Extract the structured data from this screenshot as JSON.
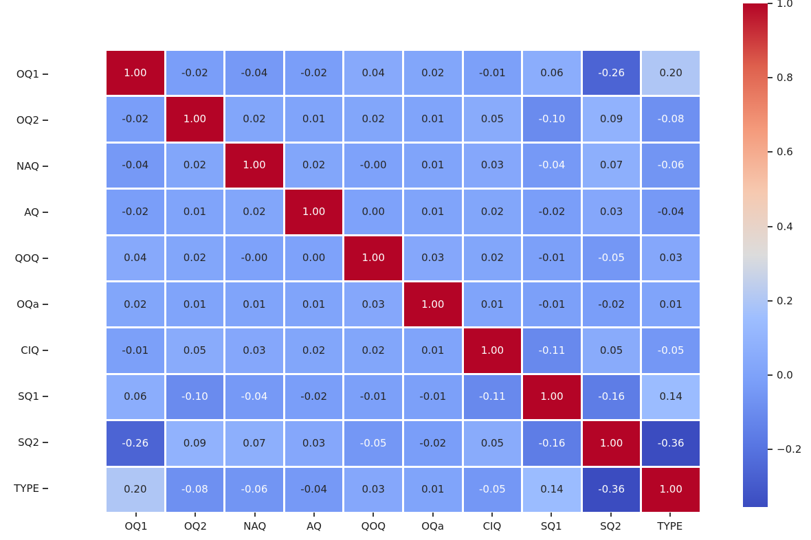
{
  "figure": {
    "background": "#ffffff"
  },
  "chart_data": {
    "type": "heatmap",
    "title": "",
    "xlabel": "",
    "ylabel": "",
    "legend_position": "colorbar-right",
    "grid": false,
    "categories": [
      "OQ1",
      "OQ2",
      "NAQ",
      "AQ",
      "QOQ",
      "OQa",
      "CIQ",
      "SQ1",
      "SQ2",
      "TYPE"
    ],
    "matrix_display": [
      [
        "1.00",
        "-0.02",
        "-0.04",
        "-0.02",
        "0.04",
        "0.02",
        "-0.01",
        "0.06",
        "-0.26",
        "0.20"
      ],
      [
        "-0.02",
        "1.00",
        "0.02",
        "0.01",
        "0.02",
        "0.01",
        "0.05",
        "-0.10",
        "0.09",
        "-0.08"
      ],
      [
        "-0.04",
        "0.02",
        "1.00",
        "0.02",
        "-0.00",
        "0.01",
        "0.03",
        "-0.04",
        "0.07",
        "-0.06"
      ],
      [
        "-0.02",
        "0.01",
        "0.02",
        "1.00",
        "0.00",
        "0.01",
        "0.02",
        "-0.02",
        "0.03",
        "-0.04"
      ],
      [
        "0.04",
        "0.02",
        "-0.00",
        "0.00",
        "1.00",
        "0.03",
        "0.02",
        "-0.01",
        "-0.05",
        "0.03"
      ],
      [
        "0.02",
        "0.01",
        "0.01",
        "0.01",
        "0.03",
        "1.00",
        "0.01",
        "-0.01",
        "-0.02",
        "0.01"
      ],
      [
        "-0.01",
        "0.05",
        "0.03",
        "0.02",
        "0.02",
        "0.01",
        "1.00",
        "-0.11",
        "0.05",
        "-0.05"
      ],
      [
        "0.06",
        "-0.10",
        "-0.04",
        "-0.02",
        "-0.01",
        "-0.01",
        "-0.11",
        "1.00",
        "-0.16",
        "0.14"
      ],
      [
        "-0.26",
        "0.09",
        "0.07",
        "0.03",
        "-0.05",
        "-0.02",
        "0.05",
        "-0.16",
        "1.00",
        "-0.36"
      ],
      [
        "0.20",
        "-0.08",
        "-0.06",
        "-0.04",
        "0.03",
        "0.01",
        "-0.05",
        "0.14",
        "-0.36",
        "1.00"
      ]
    ],
    "matrix_values": [
      [
        1.0,
        -0.02,
        -0.04,
        -0.02,
        0.04,
        0.02,
        -0.01,
        0.06,
        -0.26,
        0.2
      ],
      [
        -0.02,
        1.0,
        0.02,
        0.01,
        0.02,
        0.01,
        0.05,
        -0.1,
        0.09,
        -0.08
      ],
      [
        -0.04,
        0.02,
        1.0,
        0.02,
        0.0,
        0.01,
        0.03,
        -0.04,
        0.07,
        -0.06
      ],
      [
        -0.02,
        0.01,
        0.02,
        1.0,
        0.0,
        0.01,
        0.02,
        -0.02,
        0.03,
        -0.04
      ],
      [
        0.04,
        0.02,
        0.0,
        0.0,
        1.0,
        0.03,
        0.02,
        -0.01,
        -0.05,
        0.03
      ],
      [
        0.02,
        0.01,
        0.01,
        0.01,
        0.03,
        1.0,
        0.01,
        -0.01,
        -0.02,
        0.01
      ],
      [
        -0.01,
        0.05,
        0.03,
        0.02,
        0.02,
        0.01,
        1.0,
        -0.11,
        0.05,
        -0.05
      ],
      [
        0.06,
        -0.1,
        -0.04,
        -0.02,
        -0.01,
        -0.01,
        -0.11,
        1.0,
        -0.16,
        0.14
      ],
      [
        -0.26,
        0.09,
        0.07,
        0.03,
        -0.05,
        -0.02,
        0.05,
        -0.16,
        1.0,
        -0.36
      ],
      [
        0.2,
        -0.08,
        -0.06,
        -0.04,
        0.03,
        0.01,
        -0.05,
        0.14,
        -0.36,
        1.0
      ]
    ],
    "text_colors": [
      [
        "w",
        "k",
        "k",
        "k",
        "k",
        "k",
        "k",
        "k",
        "w",
        "k"
      ],
      [
        "k",
        "w",
        "k",
        "k",
        "k",
        "k",
        "k",
        "w",
        "k",
        "w"
      ],
      [
        "k",
        "k",
        "w",
        "k",
        "k",
        "k",
        "k",
        "w",
        "k",
        "w"
      ],
      [
        "k",
        "k",
        "k",
        "w",
        "k",
        "k",
        "k",
        "k",
        "k",
        "k"
      ],
      [
        "k",
        "k",
        "k",
        "k",
        "w",
        "k",
        "k",
        "k",
        "w",
        "k"
      ],
      [
        "k",
        "k",
        "k",
        "k",
        "k",
        "w",
        "k",
        "k",
        "k",
        "k"
      ],
      [
        "k",
        "k",
        "k",
        "k",
        "k",
        "k",
        "w",
        "w",
        "k",
        "w"
      ],
      [
        "k",
        "w",
        "w",
        "k",
        "k",
        "k",
        "w",
        "w",
        "w",
        "k"
      ],
      [
        "w",
        "k",
        "k",
        "k",
        "w",
        "k",
        "k",
        "w",
        "w",
        "w"
      ],
      [
        "k",
        "w",
        "w",
        "k",
        "k",
        "k",
        "w",
        "k",
        "w",
        "w"
      ]
    ],
    "colormap": {
      "name": "coolwarm",
      "vmin": -0.355,
      "vmax": 1.0,
      "stops": [
        {
          "t": 0.0,
          "color": "#3B4CC0"
        },
        {
          "t": 0.125,
          "color": "#5977E3"
        },
        {
          "t": 0.25,
          "color": "#7B9FF9"
        },
        {
          "t": 0.375,
          "color": "#9EBEFF"
        },
        {
          "t": 0.5,
          "color": "#DCDCDC"
        },
        {
          "t": 0.625,
          "color": "#F6C9B0"
        },
        {
          "t": 0.75,
          "color": "#F49A7B"
        },
        {
          "t": 0.875,
          "color": "#DE604D"
        },
        {
          "t": 1.0,
          "color": "#B40426"
        }
      ]
    },
    "cell_text_dark": "#262626",
    "cell_text_light": "#fbfbfb",
    "gridline_color": "#ffffff",
    "tick_color": "#3a3a3a",
    "colorbar": {
      "ticks": [
        {
          "value": 1.0,
          "label": "1.0"
        },
        {
          "value": 0.8,
          "label": "0.8"
        },
        {
          "value": 0.6,
          "label": "0.6"
        },
        {
          "value": 0.4,
          "label": "0.4"
        },
        {
          "value": 0.2,
          "label": "0.2"
        },
        {
          "value": 0.0,
          "label": "0.0"
        },
        {
          "value": -0.2,
          "label": "−0.2"
        }
      ]
    }
  }
}
